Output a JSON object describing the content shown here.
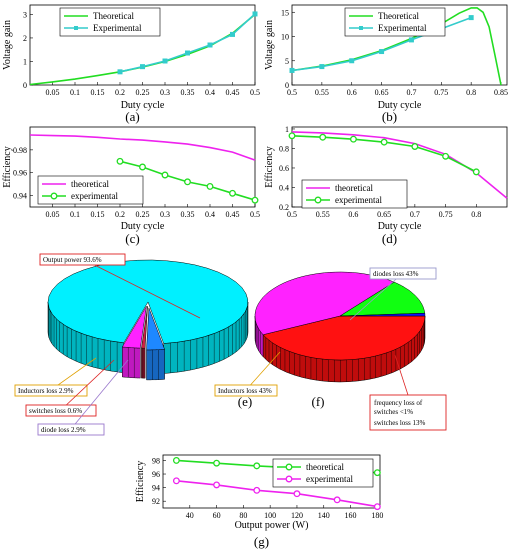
{
  "chart_data": [
    {
      "id": "a",
      "type": "line",
      "panel_label": "(a)",
      "xlabel": "Duty cycle",
      "ylabel": "Voltage gain",
      "xlim": [
        0,
        0.5
      ],
      "ylim": [
        0,
        3.4
      ],
      "xticks": [
        0.05,
        0.1,
        0.15,
        0.2,
        0.25,
        0.3,
        0.35,
        0.4,
        0.45,
        0.5
      ],
      "xtick_labels": [
        "0.05",
        "0.1",
        "0.15",
        "0.2",
        "0.25",
        "0.3",
        "0.35",
        "0.4",
        "0.45",
        "0.5"
      ],
      "yticks": [
        0,
        1,
        2,
        3
      ],
      "ytick_labels": [
        "0",
        "1",
        "2",
        "3"
      ],
      "legend": "top-left",
      "series": [
        {
          "name": "Theoretical",
          "color": "#22dd22",
          "marker": "none",
          "x": [
            0,
            0.05,
            0.1,
            0.15,
            0.2,
            0.25,
            0.3,
            0.35,
            0.4,
            0.45,
            0.5
          ],
          "y": [
            0.02,
            0.13,
            0.25,
            0.4,
            0.56,
            0.76,
            1.0,
            1.3,
            1.66,
            2.2,
            3.0
          ]
        },
        {
          "name": "Experimental",
          "color": "#33cccc",
          "marker": "square",
          "x": [
            0.2,
            0.25,
            0.3,
            0.35,
            0.4,
            0.45,
            0.5
          ],
          "y": [
            0.56,
            0.78,
            1.02,
            1.36,
            1.7,
            2.15,
            3.02
          ]
        }
      ]
    },
    {
      "id": "b",
      "type": "line",
      "panel_label": "(b)",
      "xlabel": "Duty cycle",
      "ylabel": "Voltage gain",
      "xlim": [
        0.5,
        0.86
      ],
      "ylim": [
        0,
        16.5
      ],
      "xticks": [
        0.5,
        0.55,
        0.6,
        0.65,
        0.7,
        0.75,
        0.8,
        0.85
      ],
      "xtick_labels": [
        "0.5",
        "0.55",
        "0.6",
        "0.65",
        "0.7",
        "0.75",
        "0.8",
        "0.85"
      ],
      "yticks": [
        0,
        5,
        10,
        15
      ],
      "ytick_labels": [
        "0",
        "5",
        "10",
        "15"
      ],
      "legend": "top-left",
      "series": [
        {
          "name": "Theoretical",
          "color": "#22dd22",
          "marker": "none",
          "x": [
            0.5,
            0.55,
            0.6,
            0.65,
            0.7,
            0.75,
            0.78,
            0.8,
            0.81,
            0.82,
            0.83,
            0.84,
            0.85
          ],
          "y": [
            3.0,
            3.9,
            5.2,
            7.1,
            9.6,
            12.6,
            14.8,
            15.9,
            15.9,
            15.0,
            12.0,
            6.0,
            0.0
          ]
        },
        {
          "name": "Experimental",
          "color": "#33cccc",
          "marker": "square",
          "x": [
            0.5,
            0.55,
            0.6,
            0.65,
            0.7,
            0.75,
            0.8
          ],
          "y": [
            3.0,
            3.8,
            5.0,
            6.9,
            9.3,
            11.6,
            13.9
          ]
        }
      ]
    },
    {
      "id": "c",
      "type": "line",
      "panel_label": "(c)",
      "xlabel": "Duty cycle",
      "ylabel": "Efficiency",
      "xlim": [
        0,
        0.5
      ],
      "ylim": [
        0.93,
        1.0
      ],
      "xticks": [
        0.05,
        0.1,
        0.15,
        0.2,
        0.25,
        0.3,
        0.35,
        0.4,
        0.45,
        0.5
      ],
      "xtick_labels": [
        "0.05",
        "0.1",
        "0.15",
        "0.2",
        "0.25",
        "0.3",
        "0.35",
        "0.4",
        "0.45",
        "0.5"
      ],
      "yticks": [
        0.94,
        0.96,
        0.98
      ],
      "ytick_labels": [
        "0.94",
        "0.96",
        "0.98"
      ],
      "legend": "bottom-left",
      "series": [
        {
          "name": "theoretical",
          "color": "#ee22ee",
          "marker": "none",
          "x": [
            0,
            0.05,
            0.1,
            0.15,
            0.2,
            0.25,
            0.3,
            0.35,
            0.4,
            0.45,
            0.5
          ],
          "y": [
            0.993,
            0.9925,
            0.992,
            0.991,
            0.9895,
            0.9885,
            0.987,
            0.985,
            0.982,
            0.978,
            0.971
          ]
        },
        {
          "name": "experimental",
          "color": "#22dd22",
          "marker": "circle",
          "x": [
            0.2,
            0.25,
            0.3,
            0.35,
            0.4,
            0.45,
            0.5
          ],
          "y": [
            0.97,
            0.965,
            0.958,
            0.952,
            0.948,
            0.942,
            0.936
          ]
        }
      ]
    },
    {
      "id": "d",
      "type": "line",
      "panel_label": "(d)",
      "xlabel": "Duty cycle",
      "ylabel": "Efficiency",
      "xlim": [
        0.5,
        0.85
      ],
      "ylim": [
        0.2,
        1.02
      ],
      "xticks": [
        0.5,
        0.55,
        0.6,
        0.65,
        0.7,
        0.75,
        0.8
      ],
      "xtick_labels": [
        "0.5",
        "0.55",
        "0.6",
        "0.65",
        "0.7",
        "0.75",
        "0.8"
      ],
      "yticks": [
        0.2,
        0.4,
        0.6,
        0.8,
        1
      ],
      "ytick_labels": [
        "0.2",
        "0.4",
        "0.6",
        "0.8",
        "1"
      ],
      "legend": "bottom-left",
      "series": [
        {
          "name": "theoretical",
          "color": "#ee22ee",
          "marker": "none",
          "x": [
            0.5,
            0.55,
            0.6,
            0.65,
            0.7,
            0.75,
            0.8,
            0.85
          ],
          "y": [
            0.97,
            0.96,
            0.94,
            0.91,
            0.85,
            0.74,
            0.55,
            0.29
          ]
        },
        {
          "name": "experimental",
          "color": "#22dd22",
          "marker": "circle",
          "x": [
            0.5,
            0.55,
            0.6,
            0.65,
            0.7,
            0.75,
            0.8
          ],
          "y": [
            0.93,
            0.915,
            0.895,
            0.865,
            0.82,
            0.72,
            0.56
          ]
        }
      ]
    },
    {
      "id": "e",
      "type": "pie",
      "panel_label": "(e)",
      "slices": [
        {
          "label": "Output power 93.6%",
          "value": 93.6,
          "color": "#00f0ff"
        },
        {
          "label": "Inductors loss 2.9%",
          "value": 2.9,
          "color": "#1e88ff"
        },
        {
          "label": "switches loss 0.6%",
          "value": 0.6,
          "color": "#cc2244"
        },
        {
          "label": "diode loss 2.9%",
          "value": 2.9,
          "color": "#ff22ff"
        }
      ]
    },
    {
      "id": "f",
      "type": "pie",
      "panel_label": "(f)",
      "slices": [
        {
          "label": "diodes loss 43%",
          "value": 43,
          "color": "#ff1111"
        },
        {
          "label": "Inductors loss 43%",
          "value": 43,
          "color": "#ff22ff"
        },
        {
          "label": "switches loss 13%",
          "value": 13,
          "color": "#11ff11"
        },
        {
          "label": "frequency loss of switches <1%",
          "value": 1,
          "color": "#1111ff"
        }
      ]
    },
    {
      "id": "g",
      "type": "line",
      "panel_label": "(g)",
      "xlabel": "Output power (W)",
      "ylabel": "Efficiency",
      "xlim": [
        20,
        182
      ],
      "ylim": [
        91,
        98.8
      ],
      "xticks": [
        40,
        60,
        80,
        100,
        120,
        140,
        160,
        180
      ],
      "xtick_labels": [
        "40",
        "60",
        "80",
        "100",
        "120",
        "140",
        "160",
        "180"
      ],
      "yticks": [
        92,
        94,
        96,
        98
      ],
      "ytick_labels": [
        "92",
        "94",
        "96",
        "98"
      ],
      "legend": "top-right",
      "series": [
        {
          "name": "theoretical",
          "color": "#22dd22",
          "marker": "circle",
          "x": [
            30,
            60,
            90,
            120,
            150,
            180
          ],
          "y": [
            98.0,
            97.6,
            97.2,
            96.9,
            96.5,
            96.2
          ]
        },
        {
          "name": "experimental",
          "color": "#ee22ee",
          "marker": "circle",
          "x": [
            30,
            60,
            90,
            120,
            150,
            180
          ],
          "y": [
            95.0,
            94.4,
            93.6,
            93.1,
            92.2,
            91.2
          ]
        }
      ]
    }
  ]
}
